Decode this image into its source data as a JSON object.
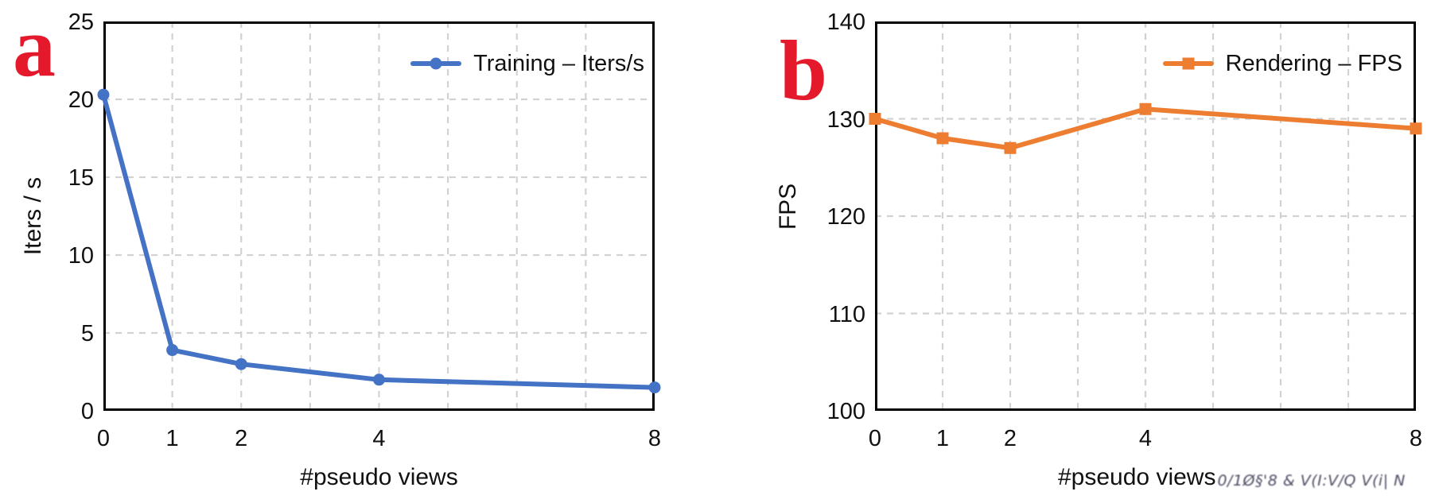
{
  "panels": [
    {
      "letter": "a"
    },
    {
      "letter": "b"
    }
  ],
  "colors": {
    "panel_label_red": "#e4192b",
    "training_blue": "#4472c4",
    "rendering_orange": "#ed7d31",
    "gridline_gray": "#d2d2d2",
    "frame_black": "#000000"
  },
  "footer": {
    "watermark": "0/1Ø§'8 & V(I:V/Q V(i| N"
  },
  "chart_data": [
    {
      "type": "line",
      "title": "",
      "xlabel": "#pseudo views",
      "ylabel": "Iters / s",
      "xlim": [
        0,
        8
      ],
      "ylim": [
        0,
        25
      ],
      "xticks": [
        0,
        1,
        2,
        4,
        8
      ],
      "yticks": [
        0,
        5,
        10,
        15,
        20,
        25
      ],
      "grid_x": [
        1,
        2,
        3,
        4,
        5,
        6,
        7
      ],
      "grid_y": [
        5,
        10,
        15,
        20
      ],
      "grid": "dashed",
      "legend_position": "upper right",
      "series": [
        {
          "name": "Training – Iters/s",
          "x": [
            0,
            1,
            2,
            4,
            8
          ],
          "y": [
            20.3,
            3.9,
            3.0,
            2.0,
            1.5
          ],
          "color": "#4472c4",
          "marker": "circle"
        }
      ]
    },
    {
      "type": "line",
      "title": "",
      "xlabel": "#pseudo views",
      "ylabel": "FPS",
      "xlim": [
        0,
        8
      ],
      "ylim": [
        100,
        140
      ],
      "xticks": [
        0,
        1,
        2,
        4,
        8
      ],
      "yticks": [
        100,
        110,
        120,
        130,
        140
      ],
      "grid_x": [
        1,
        2,
        3,
        4,
        5,
        6,
        7
      ],
      "grid_y": [
        110,
        120,
        130
      ],
      "grid": "dashed",
      "legend_position": "upper right",
      "series": [
        {
          "name": "Rendering – FPS",
          "x": [
            0,
            1,
            2,
            4,
            8
          ],
          "y": [
            130,
            128,
            127,
            131,
            129
          ],
          "color": "#ed7d31",
          "marker": "square"
        }
      ]
    }
  ]
}
